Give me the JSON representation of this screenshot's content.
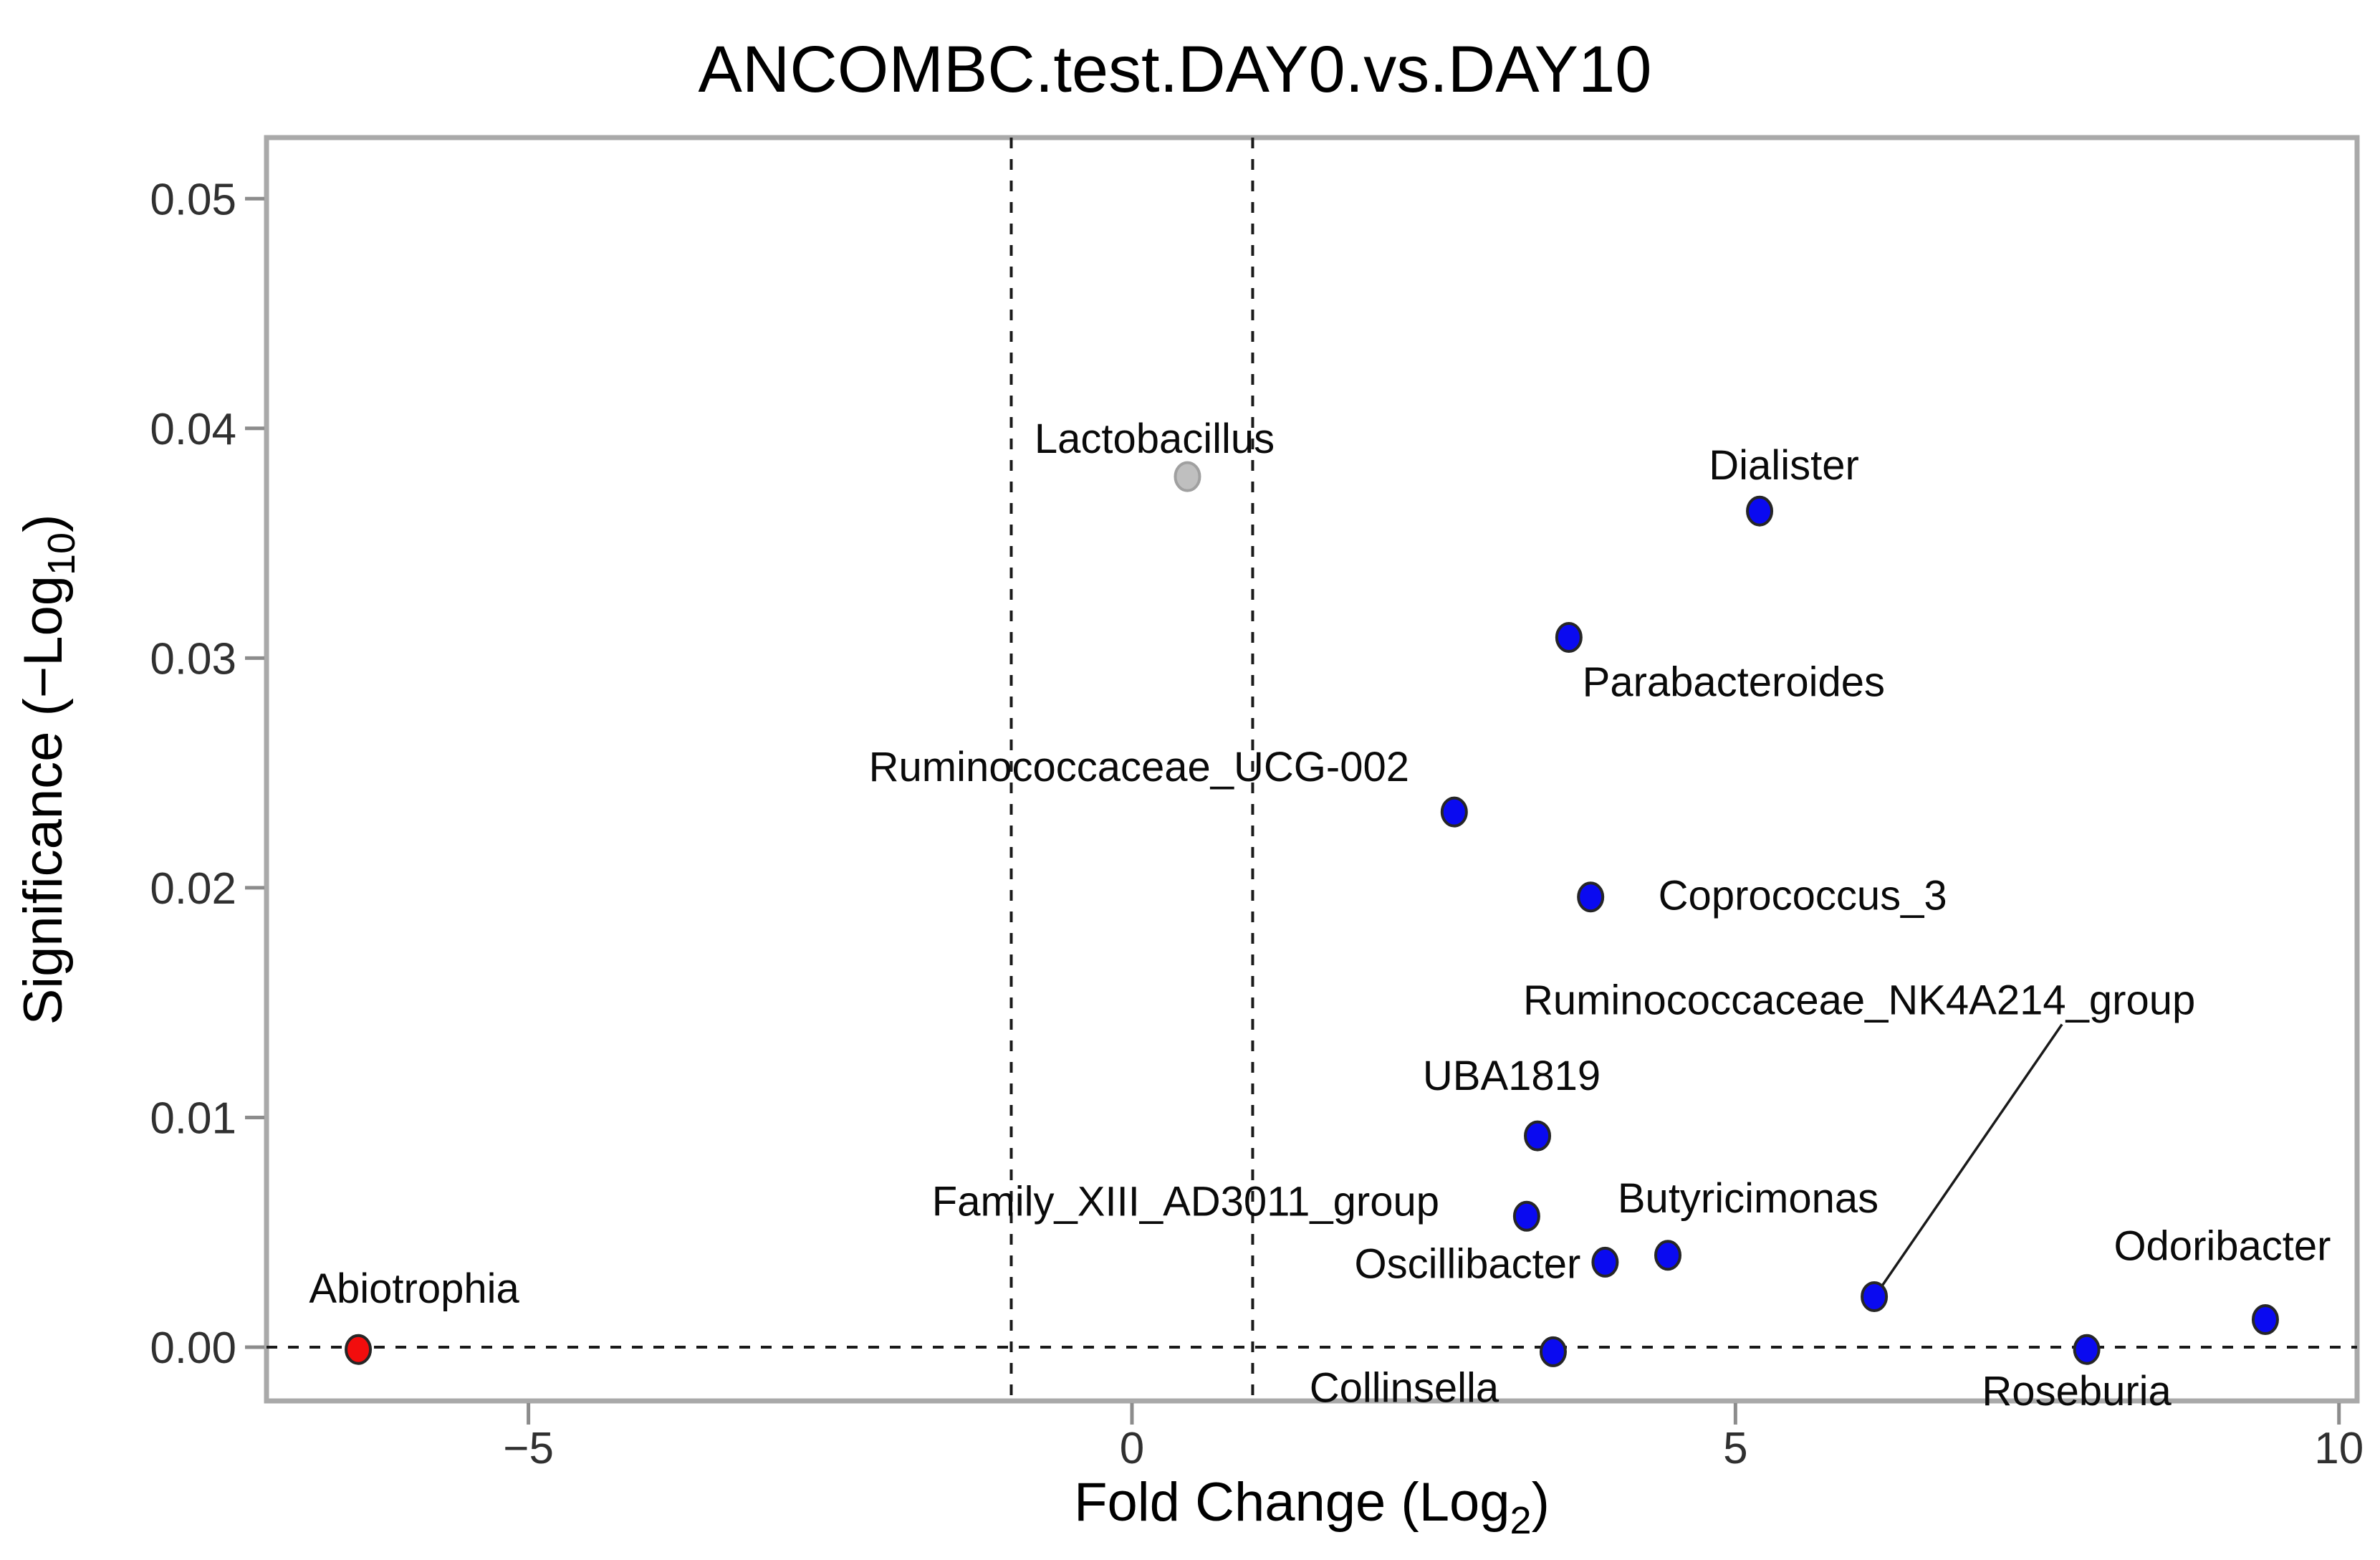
{
  "figure": {
    "title": "ANCOMBC.test.DAY0.vs.DAY10"
  },
  "chart_data": {
    "type": "scatter",
    "title": "ANCOMBC.test.DAY0.vs.DAY10",
    "xlabel": {
      "pre": "Fold Change (Log",
      "sub": "2",
      "post": ")"
    },
    "ylabel": {
      "pre": "Significance (−Log",
      "sub": "10",
      "post": ")"
    },
    "xlim": [
      -7.17,
      10.15
    ],
    "ylim": [
      -0.00234,
      0.05266
    ],
    "grid": "off",
    "legend": "none",
    "x_ticks": [
      {
        "value": -5,
        "label": "−5"
      },
      {
        "value": 0,
        "label": "0"
      },
      {
        "value": 5,
        "label": "5"
      },
      {
        "value": 10,
        "label": "10"
      }
    ],
    "y_ticks": [
      {
        "value": 0.0,
        "label": "0.00"
      },
      {
        "value": 0.01,
        "label": "0.01"
      },
      {
        "value": 0.02,
        "label": "0.02"
      },
      {
        "value": 0.03,
        "label": "0.03"
      },
      {
        "value": 0.04,
        "label": "0.04"
      },
      {
        "value": 0.05,
        "label": "0.05"
      }
    ],
    "threshold_lines": {
      "vertical_x": [
        -1,
        1
      ],
      "horizontal_y": 0
    },
    "colors": {
      "up": "#0a0af0",
      "down": "#f20d0d",
      "neutral": "#bfbfbf"
    },
    "points": [
      {
        "name": "Abiotrophia",
        "fold": -6.41,
        "sig": -0.0001,
        "color": "down",
        "label_offset": [
          78,
          -85
        ]
      },
      {
        "name": "Lactobacillus",
        "fold": 0.46,
        "sig": 0.0379,
        "color": "neutral",
        "label_offset": [
          -46,
          -53
        ]
      },
      {
        "name": "Ruminococcaceae_UCG-002",
        "fold": 2.67,
        "sig": 0.0233,
        "color": "up",
        "label_offset": [
          -440,
          -63
        ]
      },
      {
        "name": "Family_XIII_AD3011_group",
        "fold": 3.27,
        "sig": 0.0057,
        "color": "up",
        "label_offset": [
          -476,
          -21
        ]
      },
      {
        "name": "UBA1819",
        "fold": 3.36,
        "sig": 0.0092,
        "color": "up",
        "label_offset": [
          -36,
          -84
        ]
      },
      {
        "name": "Collinsella",
        "fold": 3.49,
        "sig": -0.0002,
        "color": "up",
        "label_offset": [
          -208,
          50
        ]
      },
      {
        "name": "Parabacteroides",
        "fold": 3.62,
        "sig": 0.0309,
        "color": "up",
        "label_offset": [
          230,
          62
        ]
      },
      {
        "name": "Coprococcus_3",
        "fold": 3.8,
        "sig": 0.0196,
        "color": "up",
        "label_offset": [
          296,
          -2
        ]
      },
      {
        "name": "Oscillibacter",
        "fold": 3.92,
        "sig": 0.0037,
        "color": "up",
        "label_offset": [
          -192,
          2
        ]
      },
      {
        "name": "Butyricimonas",
        "fold": 4.44,
        "sig": 0.004,
        "color": "up",
        "label_offset": [
          112,
          -80
        ]
      },
      {
        "name": "Dialister",
        "fold": 5.2,
        "sig": 0.0364,
        "color": "up",
        "label_offset": [
          34,
          -64
        ]
      },
      {
        "name": "Ruminococcaceae_NK4A214_group",
        "fold": 6.15,
        "sig": 0.0022,
        "color": "up",
        "label_offset": [
          -21,
          -414
        ],
        "leader": {
          "from_offset": [
            283,
            34
          ]
        }
      },
      {
        "name": "Roseburia",
        "fold": 7.91,
        "sig": -0.0001,
        "color": "up",
        "label_offset": [
          -14,
          58
        ]
      },
      {
        "name": "Odoribacter",
        "fold": 9.39,
        "sig": 0.0012,
        "color": "up",
        "label_offset": [
          -60,
          -103
        ]
      }
    ]
  },
  "style": {
    "panel_border": "#a9a9a9",
    "panel_fill": "#ffffff",
    "tick_color": "#8c8c8c",
    "dashed_color": "#1a1a1a",
    "point_outline": "#262626",
    "neutral_outline": "#a0a0a0"
  }
}
